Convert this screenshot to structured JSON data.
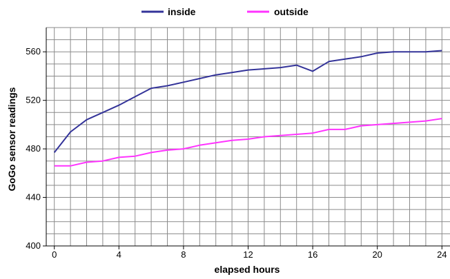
{
  "chart_data": {
    "type": "line",
    "xlabel": "elapsed hours",
    "ylabel": "GoGo sensor readings",
    "xlim": [
      -0.5,
      24.5
    ],
    "ylim": [
      400,
      580
    ],
    "x_ticks": [
      0,
      4,
      8,
      12,
      16,
      20,
      24
    ],
    "x_tick_labels": [
      "0",
      "4",
      "8",
      "12",
      "16",
      "20",
      "24"
    ],
    "y_ticks": [
      400,
      440,
      480,
      520,
      560
    ],
    "y_tick_labels": [
      "400",
      "440",
      "480",
      "520",
      "560"
    ],
    "grid": true,
    "legend_position": "top",
    "x": [
      0,
      1,
      2,
      3,
      4,
      5,
      6,
      7,
      8,
      9,
      10,
      11,
      12,
      13,
      14,
      15,
      16,
      17,
      18,
      19,
      20,
      21,
      22,
      23,
      24
    ],
    "series": [
      {
        "name": "inside",
        "color": "#333399",
        "values": [
          477,
          494,
          504,
          510,
          516,
          523,
          530,
          532,
          535,
          538,
          541,
          543,
          545,
          546,
          547,
          549,
          544,
          552,
          554,
          556,
          559,
          560,
          560,
          560,
          561
        ]
      },
      {
        "name": "outside",
        "color": "#ff33ff",
        "values": [
          466,
          466,
          469,
          470,
          473,
          474,
          477,
          479,
          480,
          483,
          485,
          487,
          488,
          490,
          491,
          492,
          493,
          496,
          496,
          499,
          500,
          501,
          502,
          503,
          505
        ]
      }
    ]
  }
}
